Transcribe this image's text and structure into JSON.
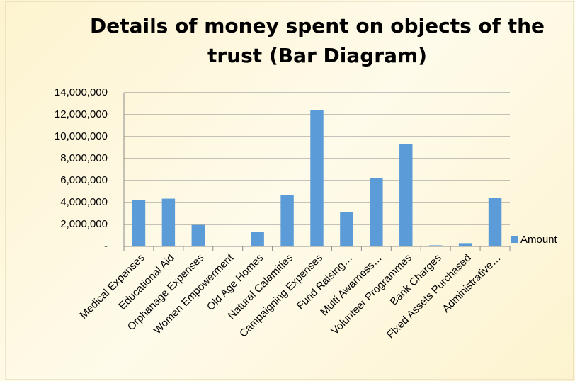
{
  "chart_data": {
    "type": "bar",
    "title": "Details of money spent on objects of the trust (Bar Diagram)",
    "categories": [
      "Medical Expenses",
      "Educational Aid",
      "Orphanage Expenses",
      "Women Empowerment",
      "Old Age Homes",
      "Natural Calamities",
      "Campaigning Expenses",
      "Fund Raising…",
      "Multi Awarness…",
      "Volunteer Programmes",
      "Bank Charges",
      "Fixed Assets Purchased",
      "Administrative…"
    ],
    "series": [
      {
        "name": "Amount",
        "color": "#5a9bd8",
        "values": [
          4250000,
          4350000,
          1950000,
          0,
          1350000,
          4700000,
          12400000,
          3100000,
          6200000,
          9300000,
          100000,
          300000,
          4400000
        ]
      }
    ],
    "ylim": [
      0,
      14000000
    ],
    "yticks": [
      {
        "value": 0,
        "label": "-"
      },
      {
        "value": 2000000,
        "label": "2,000,000"
      },
      {
        "value": 4000000,
        "label": "4,000,000"
      },
      {
        "value": 6000000,
        "label": "6,000,000"
      },
      {
        "value": 8000000,
        "label": "8,000,000"
      },
      {
        "value": 10000000,
        "label": "10,000,000"
      },
      {
        "value": 12000000,
        "label": "12,000,000"
      },
      {
        "value": 14000000,
        "label": "14,000,000"
      }
    ],
    "grid": true,
    "legend": "right"
  }
}
